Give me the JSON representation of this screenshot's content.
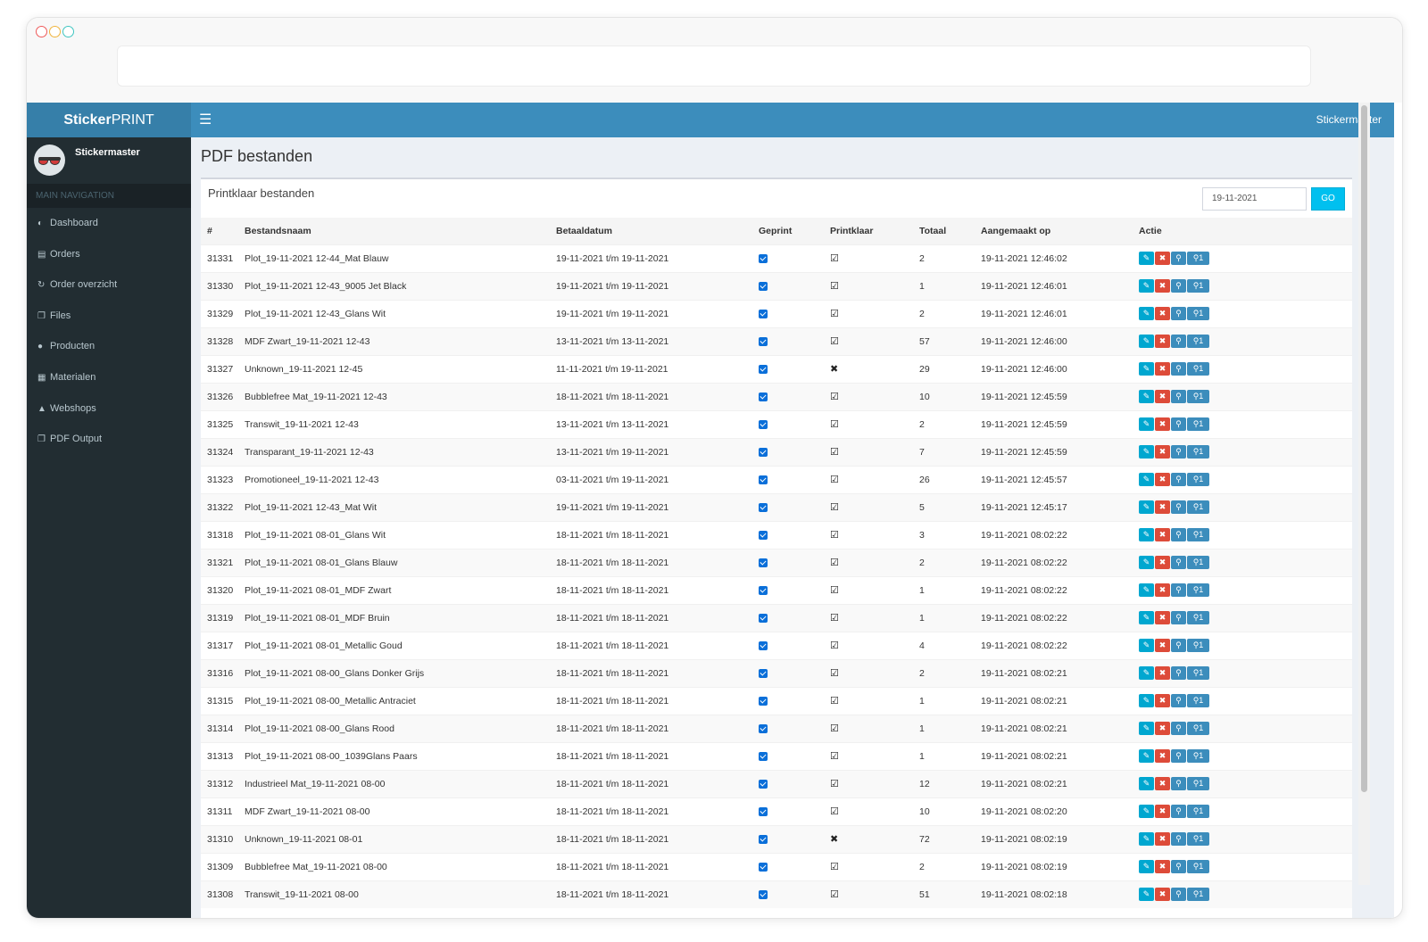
{
  "app": {
    "logo_bold": "Sticker",
    "logo_rest": "PRINT",
    "menu_icon": "hamburger-icon",
    "top_user": "Stickermaster"
  },
  "sidebar": {
    "user_name": "Stickermaster",
    "nav_header": "MAIN NAVIGATION",
    "items": [
      {
        "label": "Dashboard",
        "icon": "dashboard-icon"
      },
      {
        "label": "Orders",
        "icon": "cart-icon"
      },
      {
        "label": "Order overzicht",
        "icon": "refresh-icon"
      },
      {
        "label": "Files",
        "icon": "files-icon"
      },
      {
        "label": "Producten",
        "icon": "globe-icon"
      },
      {
        "label": "Materialen",
        "icon": "materials-icon"
      },
      {
        "label": "Webshops",
        "icon": "shopping-bag-icon"
      },
      {
        "label": "PDF Output",
        "icon": "files-icon"
      }
    ]
  },
  "main": {
    "page_title": "PDF bestanden",
    "box_title": "Printklaar bestanden",
    "date_value": "19-11-2021",
    "go_label": "GO",
    "columns": [
      "#",
      "Bestandsnaam",
      "Betaaldatum",
      "Geprint",
      "Printklaar",
      "Totaal",
      "Aangemaakt op",
      "Actie"
    ],
    "rows": [
      {
        "id": "31331",
        "name": "Plot_19-11-2021 12-44_Mat Blauw",
        "paid": "19-11-2021 t/m 19-11-2021",
        "printed": true,
        "ready": "check",
        "total": "2",
        "created": "19-11-2021 12:46:02"
      },
      {
        "id": "31330",
        "name": "Plot_19-11-2021 12-43_9005 Jet Black",
        "paid": "19-11-2021 t/m 19-11-2021",
        "printed": true,
        "ready": "check",
        "total": "1",
        "created": "19-11-2021 12:46:01"
      },
      {
        "id": "31329",
        "name": "Plot_19-11-2021 12-43_Glans Wit",
        "paid": "19-11-2021 t/m 19-11-2021",
        "printed": true,
        "ready": "check",
        "total": "2",
        "created": "19-11-2021 12:46:01"
      },
      {
        "id": "31328",
        "name": "MDF Zwart_19-11-2021 12-43",
        "paid": "13-11-2021 t/m 13-11-2021",
        "printed": true,
        "ready": "check",
        "total": "57",
        "created": "19-11-2021 12:46:00"
      },
      {
        "id": "31327",
        "name": "Unknown_19-11-2021 12-45",
        "paid": "11-11-2021 t/m 19-11-2021",
        "printed": true,
        "ready": "cross",
        "total": "29",
        "created": "19-11-2021 12:46:00"
      },
      {
        "id": "31326",
        "name": "Bubblefree Mat_19-11-2021 12-43",
        "paid": "18-11-2021 t/m 18-11-2021",
        "printed": true,
        "ready": "check",
        "total": "10",
        "created": "19-11-2021 12:45:59"
      },
      {
        "id": "31325",
        "name": "Transwit_19-11-2021 12-43",
        "paid": "13-11-2021 t/m 13-11-2021",
        "printed": true,
        "ready": "check",
        "total": "2",
        "created": "19-11-2021 12:45:59"
      },
      {
        "id": "31324",
        "name": "Transparant_19-11-2021 12-43",
        "paid": "13-11-2021 t/m 19-11-2021",
        "printed": true,
        "ready": "check",
        "total": "7",
        "created": "19-11-2021 12:45:59"
      },
      {
        "id": "31323",
        "name": "Promotioneel_19-11-2021 12-43",
        "paid": "03-11-2021 t/m 19-11-2021",
        "printed": true,
        "ready": "check",
        "total": "26",
        "created": "19-11-2021 12:45:57"
      },
      {
        "id": "31322",
        "name": "Plot_19-11-2021 12-43_Mat Wit",
        "paid": "19-11-2021 t/m 19-11-2021",
        "printed": true,
        "ready": "check",
        "total": "5",
        "created": "19-11-2021 12:45:17"
      },
      {
        "id": "31318",
        "name": "Plot_19-11-2021 08-01_Glans Wit",
        "paid": "18-11-2021 t/m 18-11-2021",
        "printed": true,
        "ready": "check",
        "total": "3",
        "created": "19-11-2021 08:02:22"
      },
      {
        "id": "31321",
        "name": "Plot_19-11-2021 08-01_Glans Blauw",
        "paid": "18-11-2021 t/m 18-11-2021",
        "printed": true,
        "ready": "check",
        "total": "2",
        "created": "19-11-2021 08:02:22"
      },
      {
        "id": "31320",
        "name": "Plot_19-11-2021 08-01_MDF Zwart",
        "paid": "18-11-2021 t/m 18-11-2021",
        "printed": true,
        "ready": "check",
        "total": "1",
        "created": "19-11-2021 08:02:22"
      },
      {
        "id": "31319",
        "name": "Plot_19-11-2021 08-01_MDF Bruin",
        "paid": "18-11-2021 t/m 18-11-2021",
        "printed": true,
        "ready": "check",
        "total": "1",
        "created": "19-11-2021 08:02:22"
      },
      {
        "id": "31317",
        "name": "Plot_19-11-2021 08-01_Metallic Goud",
        "paid": "18-11-2021 t/m 18-11-2021",
        "printed": true,
        "ready": "check",
        "total": "4",
        "created": "19-11-2021 08:02:22"
      },
      {
        "id": "31316",
        "name": "Plot_19-11-2021 08-00_Glans Donker Grijs",
        "paid": "18-11-2021 t/m 18-11-2021",
        "printed": true,
        "ready": "check",
        "total": "2",
        "created": "19-11-2021 08:02:21"
      },
      {
        "id": "31315",
        "name": "Plot_19-11-2021 08-00_Metallic Antraciet",
        "paid": "18-11-2021 t/m 18-11-2021",
        "printed": true,
        "ready": "check",
        "total": "1",
        "created": "19-11-2021 08:02:21"
      },
      {
        "id": "31314",
        "name": "Plot_19-11-2021 08-00_Glans Rood",
        "paid": "18-11-2021 t/m 18-11-2021",
        "printed": true,
        "ready": "check",
        "total": "1",
        "created": "19-11-2021 08:02:21"
      },
      {
        "id": "31313",
        "name": "Plot_19-11-2021 08-00_1039Glans Paars",
        "paid": "18-11-2021 t/m 18-11-2021",
        "printed": true,
        "ready": "check",
        "total": "1",
        "created": "19-11-2021 08:02:21"
      },
      {
        "id": "31312",
        "name": "Industrieel Mat_19-11-2021 08-00",
        "paid": "18-11-2021 t/m 18-11-2021",
        "printed": true,
        "ready": "check",
        "total": "12",
        "created": "19-11-2021 08:02:21"
      },
      {
        "id": "31311",
        "name": "MDF Zwart_19-11-2021 08-00",
        "paid": "18-11-2021 t/m 18-11-2021",
        "printed": true,
        "ready": "check",
        "total": "10",
        "created": "19-11-2021 08:02:20"
      },
      {
        "id": "31310",
        "name": "Unknown_19-11-2021 08-01",
        "paid": "18-11-2021 t/m 18-11-2021",
        "printed": true,
        "ready": "cross",
        "total": "72",
        "created": "19-11-2021 08:02:19"
      },
      {
        "id": "31309",
        "name": "Bubblefree Mat_19-11-2021 08-00",
        "paid": "18-11-2021 t/m 18-11-2021",
        "printed": true,
        "ready": "check",
        "total": "2",
        "created": "19-11-2021 08:02:19"
      },
      {
        "id": "31308",
        "name": "Transwit_19-11-2021 08-00",
        "paid": "18-11-2021 t/m 18-11-2021",
        "printed": true,
        "ready": "check",
        "total": "51",
        "created": "19-11-2021 08:02:18"
      }
    ],
    "action_icons": [
      "pencil-icon",
      "trash-icon",
      "magnifier-icon",
      "magnifier-info-icon"
    ],
    "action_info_label": "1"
  },
  "colors": {
    "topbar": "#3c8dbc",
    "logo_bg": "#367fa9",
    "sidebar": "#222d32",
    "go_button": "#00c0ef",
    "delete": "#dd4b39",
    "checkbox": "#0a6fd9"
  }
}
